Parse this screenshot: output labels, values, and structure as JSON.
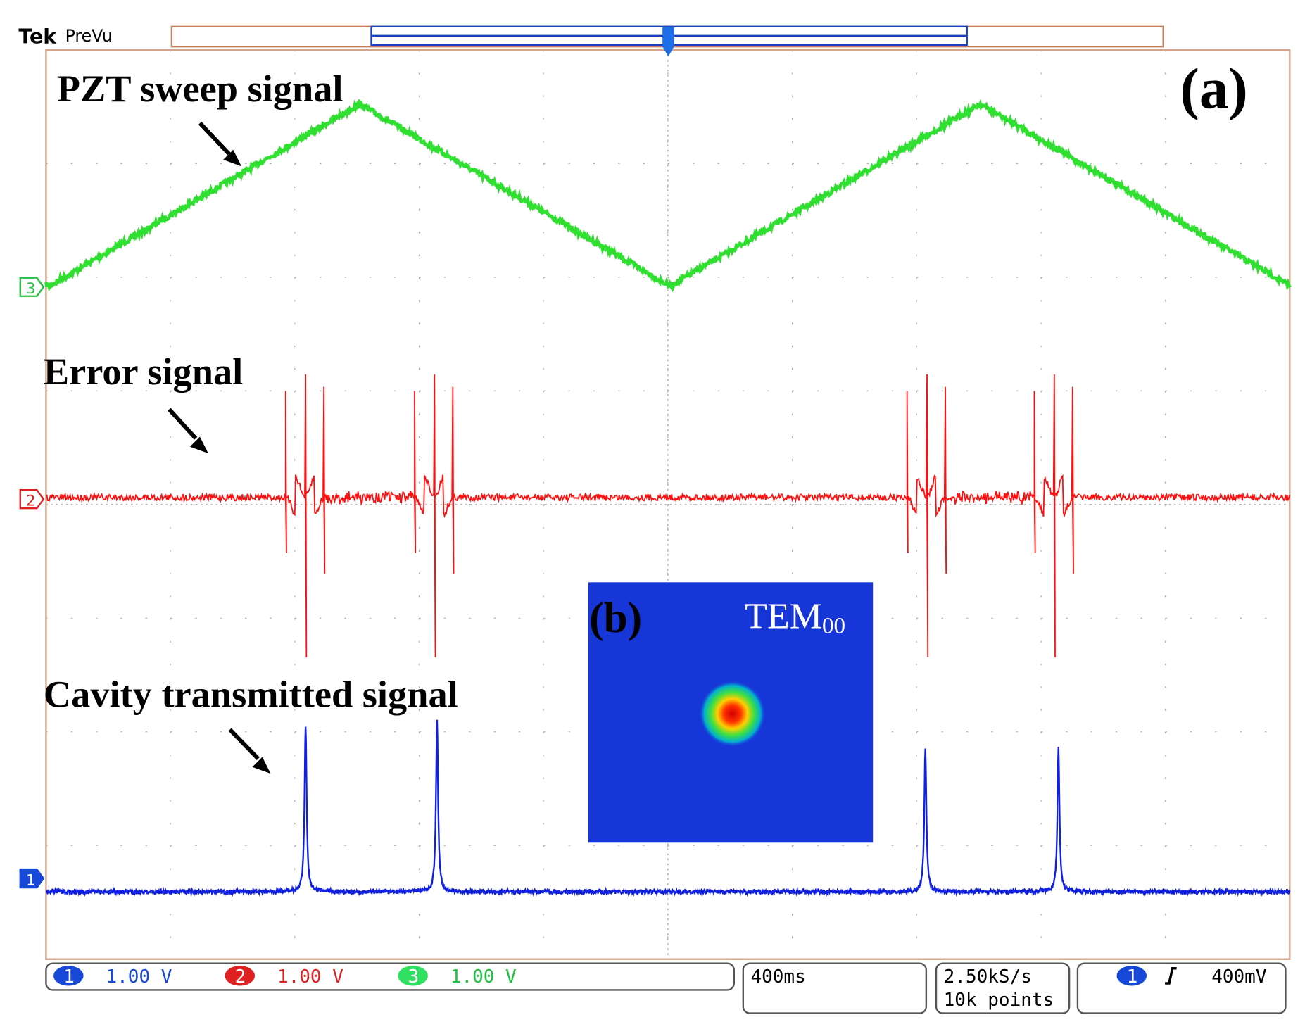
{
  "header": {
    "brand": "Tek",
    "mode": "PreVu"
  },
  "labels": {
    "panel": "(a)",
    "pzt": "PZT sweep signal",
    "error": "Error signal",
    "cavity": "Cavity transmitted signal"
  },
  "inset": {
    "panel": "(b)",
    "mode": "TEM",
    "mode_subscript": "00"
  },
  "channel_markers": [
    "3",
    "2",
    "1"
  ],
  "status": {
    "channels": [
      {
        "number": "1",
        "scale": "1.00 V"
      },
      {
        "number": "2",
        "scale": "1.00 V"
      },
      {
        "number": "3",
        "scale": "1.00 V"
      }
    ],
    "timebase": "400ms",
    "sample_rate": "2.50kS/s",
    "record_length": "10k points",
    "trigger": {
      "channel": "1",
      "level": "400mV"
    }
  }
}
